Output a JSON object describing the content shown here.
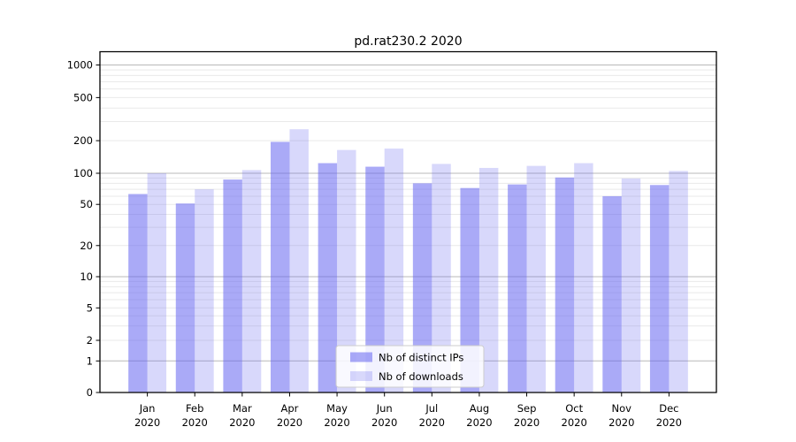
{
  "chart_data": {
    "type": "bar",
    "title": "pd.rat230.2 2020",
    "categories": [
      "Jan",
      "Feb",
      "Mar",
      "Apr",
      "May",
      "Jun",
      "Jul",
      "Aug",
      "Sep",
      "Oct",
      "Nov",
      "Dec"
    ],
    "x_tick_second_line": "2020",
    "series": [
      {
        "name": "Nb of distinct IPs",
        "values": [
          63,
          51,
          87,
          195,
          124,
          115,
          80,
          72,
          78,
          91,
          60,
          77
        ]
      },
      {
        "name": "Nb of downloads",
        "values": [
          100,
          70,
          107,
          255,
          164,
          169,
          122,
          112,
          117,
          124,
          89,
          105
        ]
      }
    ],
    "y_ticks": [
      0,
      1,
      2,
      5,
      10,
      20,
      50,
      100,
      200,
      500,
      1000
    ],
    "y_scale": "symlog",
    "ylim": [
      0,
      1340
    ],
    "grid": "horizontal major and log-minor lines",
    "legend_position": "lower center",
    "colors": {
      "bar_base": "#6464f0",
      "ips_alpha": 0.55,
      "downloads_alpha": 0.25,
      "grid_major": "#b9b9b9",
      "grid_minor": "#e9e9e9",
      "axis": "#000000",
      "legend_border": "#cccccc",
      "legend_background": "#ffffff"
    }
  }
}
